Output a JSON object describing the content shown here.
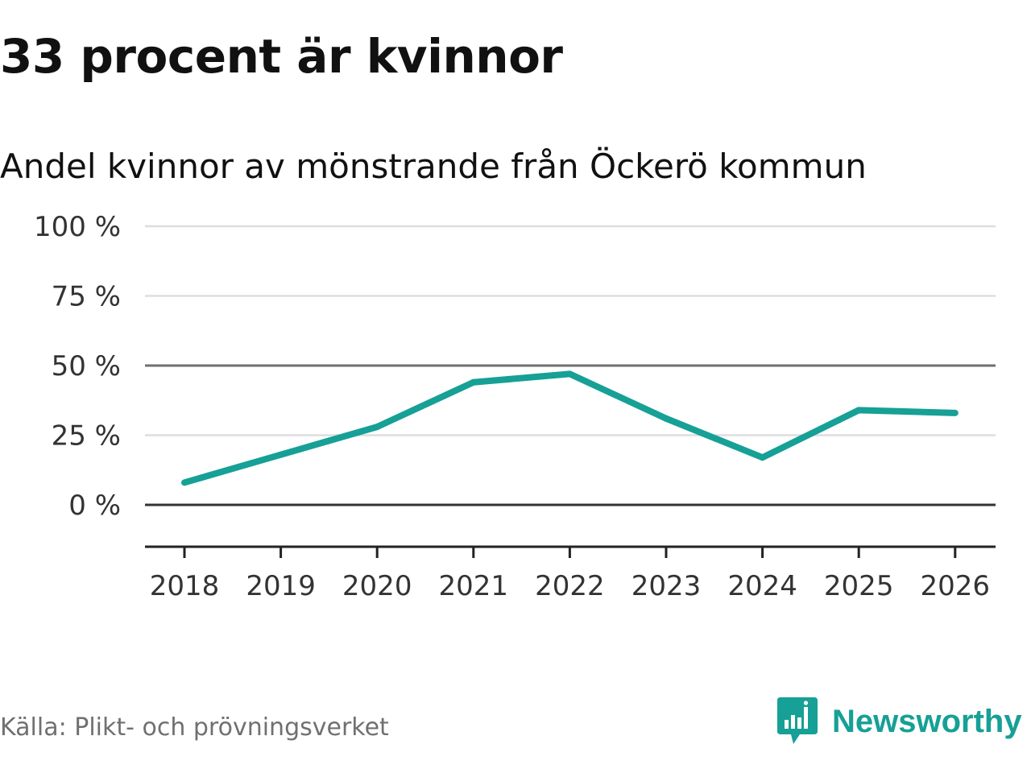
{
  "title": "33 procent är kvinnor",
  "subtitle": "Andel kvinnor av mönstrande från Öckerö kommun",
  "source": "Källa: Plikt- och prövningsverket",
  "brand": {
    "name": "Newsworthy",
    "icon": "newsworthy-logo-icon",
    "color": "#16a096"
  },
  "chart_data": {
    "type": "line",
    "title": "33 procent är kvinnor",
    "subtitle": "Andel kvinnor av mönstrande från Öckerö kommun",
    "xlabel": "",
    "ylabel": "",
    "ylim": [
      -15,
      100
    ],
    "grid": true,
    "categories": [
      "2018",
      "2019",
      "2020",
      "2021",
      "2022",
      "2023",
      "2024",
      "2025",
      "2026"
    ],
    "yticks": [
      {
        "value": 100,
        "label": "100 %"
      },
      {
        "value": 75,
        "label": "75 %"
      },
      {
        "value": 50,
        "label": "50 %"
      },
      {
        "value": 25,
        "label": "25 %"
      },
      {
        "value": 0,
        "label": "0 %"
      }
    ],
    "series": [
      {
        "name": "Andel kvinnor",
        "color": "#16a096",
        "values": [
          8,
          18,
          28,
          44,
          47,
          31,
          17,
          34,
          33
        ]
      }
    ]
  }
}
